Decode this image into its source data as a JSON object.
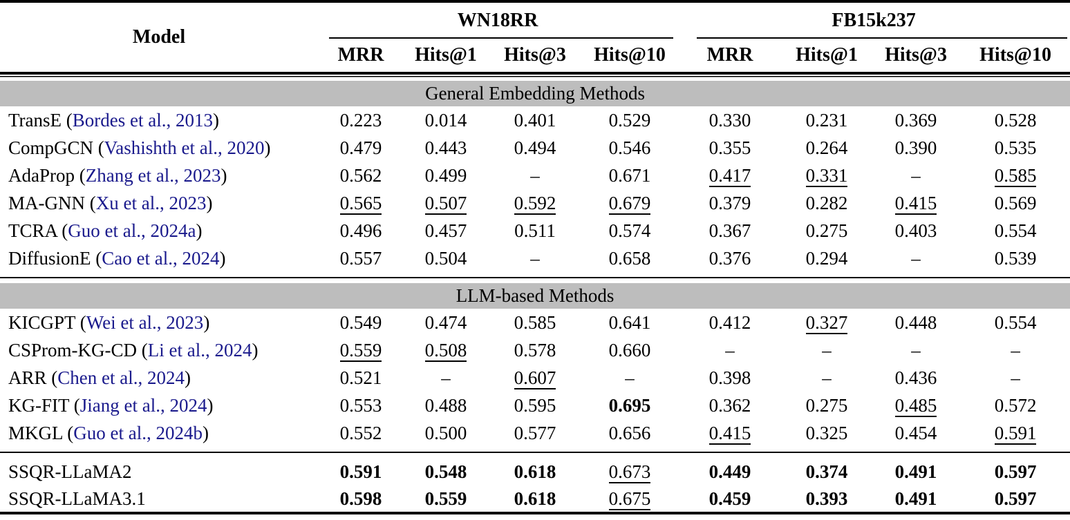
{
  "table": {
    "model_header": "Model",
    "groups": [
      {
        "label": "WN18RR"
      },
      {
        "label": "FB15k237"
      }
    ],
    "metric_headers": [
      "MRR",
      "Hits@1",
      "Hits@3",
      "Hits@10",
      "MRR",
      "Hits@1",
      "Hits@3",
      "Hits@10"
    ],
    "colors": {
      "band_background": "#bdbdbd",
      "citation_link": "#1a1a8c",
      "text": "#000000"
    },
    "value_style_legend": {
      "b": "bold (best result)",
      "u": "underlined (second best)",
      "default": "plain"
    },
    "sections": [
      {
        "title": "General Embedding Methods",
        "rows": [
          {
            "model": "TransE",
            "cite": "Bordes et al., 2013",
            "cells": [
              {
                "v": "0.223"
              },
              {
                "v": "0.014"
              },
              {
                "v": "0.401"
              },
              {
                "v": "0.529"
              },
              {
                "v": "0.330"
              },
              {
                "v": "0.231"
              },
              {
                "v": "0.369"
              },
              {
                "v": "0.528"
              }
            ]
          },
          {
            "model": "CompGCN",
            "cite": "Vashishth et al., 2020",
            "cells": [
              {
                "v": "0.479"
              },
              {
                "v": "0.443"
              },
              {
                "v": "0.494"
              },
              {
                "v": "0.546"
              },
              {
                "v": "0.355"
              },
              {
                "v": "0.264"
              },
              {
                "v": "0.390"
              },
              {
                "v": "0.535"
              }
            ]
          },
          {
            "model": "AdaProp",
            "cite": "Zhang et al., 2023",
            "cells": [
              {
                "v": "0.562"
              },
              {
                "v": "0.499"
              },
              {
                "v": "–"
              },
              {
                "v": "0.671"
              },
              {
                "v": "0.417",
                "s": "u"
              },
              {
                "v": "0.331",
                "s": "u"
              },
              {
                "v": "–"
              },
              {
                "v": "0.585",
                "s": "u"
              }
            ]
          },
          {
            "model": "MA-GNN",
            "cite": "Xu et al., 2023",
            "cells": [
              {
                "v": "0.565",
                "s": "u"
              },
              {
                "v": "0.507",
                "s": "u"
              },
              {
                "v": "0.592",
                "s": "u"
              },
              {
                "v": "0.679",
                "s": "u"
              },
              {
                "v": "0.379"
              },
              {
                "v": "0.282"
              },
              {
                "v": "0.415",
                "s": "u"
              },
              {
                "v": "0.569"
              }
            ]
          },
          {
            "model": "TCRA",
            "cite": "Guo et al., 2024a",
            "cells": [
              {
                "v": "0.496"
              },
              {
                "v": "0.457"
              },
              {
                "v": "0.511"
              },
              {
                "v": "0.574"
              },
              {
                "v": "0.367"
              },
              {
                "v": "0.275"
              },
              {
                "v": "0.403"
              },
              {
                "v": "0.554"
              }
            ]
          },
          {
            "model": "DiffusionE",
            "cite": "Cao et al., 2024",
            "cells": [
              {
                "v": "0.557"
              },
              {
                "v": "0.504"
              },
              {
                "v": "–"
              },
              {
                "v": "0.658"
              },
              {
                "v": "0.376"
              },
              {
                "v": "0.294"
              },
              {
                "v": "–"
              },
              {
                "v": "0.539"
              }
            ]
          }
        ]
      },
      {
        "title": "LLM-based Methods",
        "rows": [
          {
            "model": "KICGPT",
            "cite": "Wei et al., 2023",
            "cells": [
              {
                "v": "0.549"
              },
              {
                "v": "0.474"
              },
              {
                "v": "0.585"
              },
              {
                "v": "0.641"
              },
              {
                "v": "0.412"
              },
              {
                "v": "0.327",
                "s": "u"
              },
              {
                "v": "0.448"
              },
              {
                "v": "0.554"
              }
            ]
          },
          {
            "model": "CSProm-KG-CD",
            "cite": "Li et al., 2024",
            "cells": [
              {
                "v": "0.559",
                "s": "u"
              },
              {
                "v": "0.508",
                "s": "u"
              },
              {
                "v": "0.578"
              },
              {
                "v": "0.660"
              },
              {
                "v": "–"
              },
              {
                "v": "–"
              },
              {
                "v": "–"
              },
              {
                "v": "–"
              }
            ]
          },
          {
            "model": "ARR",
            "cite": "Chen et al., 2024",
            "cells": [
              {
                "v": "0.521"
              },
              {
                "v": "–"
              },
              {
                "v": "0.607",
                "s": "u"
              },
              {
                "v": "–"
              },
              {
                "v": "0.398"
              },
              {
                "v": "–"
              },
              {
                "v": "0.436"
              },
              {
                "v": "–"
              }
            ]
          },
          {
            "model": "KG-FIT",
            "cite": "Jiang et al., 2024",
            "cells": [
              {
                "v": "0.553"
              },
              {
                "v": "0.488"
              },
              {
                "v": "0.595"
              },
              {
                "v": "0.695",
                "s": "b"
              },
              {
                "v": "0.362"
              },
              {
                "v": "0.275"
              },
              {
                "v": "0.485",
                "s": "u"
              },
              {
                "v": "0.572"
              }
            ]
          },
          {
            "model": "MKGL",
            "cite": "Guo et al., 2024b",
            "cells": [
              {
                "v": "0.552"
              },
              {
                "v": "0.500"
              },
              {
                "v": "0.577"
              },
              {
                "v": "0.656"
              },
              {
                "v": "0.415",
                "s": "u"
              },
              {
                "v": "0.325"
              },
              {
                "v": "0.454"
              },
              {
                "v": "0.591",
                "s": "u"
              }
            ]
          }
        ]
      },
      {
        "title": null,
        "rows": [
          {
            "model": "SSQR-LLaMA2",
            "cite": null,
            "cells": [
              {
                "v": "0.591",
                "s": "b"
              },
              {
                "v": "0.548",
                "s": "b"
              },
              {
                "v": "0.618",
                "s": "b"
              },
              {
                "v": "0.673",
                "s": "u"
              },
              {
                "v": "0.449",
                "s": "b"
              },
              {
                "v": "0.374",
                "s": "b"
              },
              {
                "v": "0.491",
                "s": "b"
              },
              {
                "v": "0.597",
                "s": "b"
              }
            ]
          },
          {
            "model": "SSQR-LLaMA3.1",
            "cite": null,
            "cells": [
              {
                "v": "0.598",
                "s": "b"
              },
              {
                "v": "0.559",
                "s": "b"
              },
              {
                "v": "0.618",
                "s": "b"
              },
              {
                "v": "0.675",
                "s": "u"
              },
              {
                "v": "0.459",
                "s": "b"
              },
              {
                "v": "0.393",
                "s": "b"
              },
              {
                "v": "0.491",
                "s": "b"
              },
              {
                "v": "0.597",
                "s": "b"
              }
            ]
          }
        ]
      }
    ]
  }
}
